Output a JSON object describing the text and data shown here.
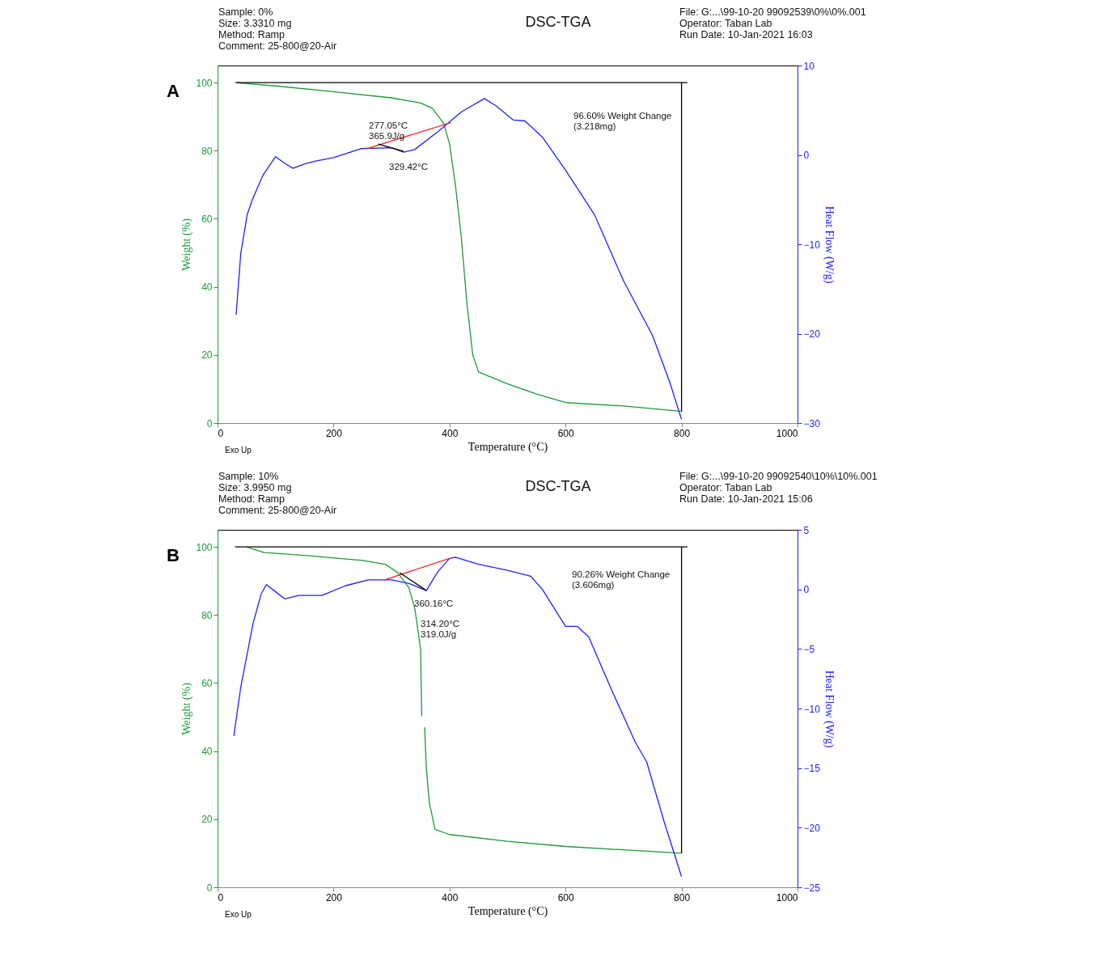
{
  "chart_data": [
    {
      "type": "line",
      "title": "DSC-TGA",
      "xlabel": "Temperature (°C)",
      "ylabel": "Weight (%)",
      "y2label": "Heat Flow (W/g)",
      "xlim": [
        0,
        1000
      ],
      "xticks": [
        0,
        200,
        400,
        600,
        800,
        1000
      ],
      "ylim": [
        0,
        105
      ],
      "yticks": [
        0,
        20,
        40,
        60,
        80,
        100
      ],
      "y2lim": [
        -30,
        10
      ],
      "y2ticks": [
        -30,
        -20,
        -10,
        0,
        10
      ],
      "series": [
        {
          "color": "#1a9a3a",
          "x": [
            30,
            100,
            200,
            300,
            350,
            370,
            390,
            400,
            410,
            420,
            430,
            440,
            450,
            500,
            550,
            600,
            700,
            800
          ],
          "values": [
            100,
            99,
            97.3,
            95.5,
            94,
            92.5,
            88,
            82,
            70,
            55,
            35,
            20,
            15,
            11.5,
            8.5,
            6,
            5,
            3.4
          ]
        },
        {
          "color": "#2020ff",
          "axis": "y2",
          "x": [
            32,
            40,
            51,
            60,
            78,
            100,
            115,
            130,
            150,
            169,
            200,
            247,
            300,
            321,
            340,
            380,
            420,
            460,
            480,
            510,
            530,
            560,
            600,
            650,
            700,
            750,
            780,
            800
          ],
          "values": [
            -17.9,
            -11,
            -6.7,
            -5,
            -2.3,
            -0.2,
            -0.9,
            -1.5,
            -1,
            -0.7,
            -0.3,
            0.7,
            0.8,
            0.3,
            0.6,
            2.6,
            4.8,
            6.3,
            5.5,
            3.9,
            3.8,
            2,
            -1.7,
            -6.7,
            -14.1,
            -20.2,
            -25.5,
            -29.6
          ]
        },
        {
          "color": "#ff2020",
          "axis": "y2",
          "x": [
            257,
            402
          ],
          "values": [
            0.7,
            3.6
          ]
        },
        {
          "color": "#000000",
          "axis": "y2",
          "x": [
            277,
            321
          ],
          "values": [
            1.2,
            0.4
          ]
        },
        {
          "color": "#000000",
          "x": [
            32,
            810
          ],
          "values": [
            100,
            100
          ]
        },
        {
          "color": "#000000",
          "x": [
            800,
            800
          ],
          "values": [
            100,
            3.4
          ]
        }
      ],
      "annotations": [
        "Sample: 0%",
        "Size:  3.3310 mg",
        "Method: Ramp",
        "Comment: 25-800@20-Air",
        "File: G:...\\99-10-20 99092539\\0%\\0%.001",
        "Operator: Taban Lab",
        "Run Date: 10-Jan-2021 16:03",
        "A",
        "Exo Up",
        "277.05°C\n365.9J/g",
        "329.42°C",
        "96.60% Weight Change\n(3.218mg)"
      ]
    },
    {
      "type": "line",
      "title": "DSC-TGA",
      "xlabel": "Temperature (°C)",
      "ylabel": "Weight (%)",
      "y2label": "Heat Flow (W/g)",
      "xlim": [
        0,
        1000
      ],
      "xticks": [
        0,
        200,
        400,
        600,
        800,
        1000
      ],
      "ylim": [
        0,
        105
      ],
      "yticks": [
        0,
        20,
        40,
        60,
        80,
        100
      ],
      "y2lim": [
        -25,
        5
      ],
      "y2ticks": [
        -25,
        -20,
        -15,
        -10,
        -5,
        0,
        5
      ],
      "series": [
        {
          "color": "#1a9a3a",
          "x": [
            50,
            80,
            150,
            250,
            290,
            310,
            330,
            340,
            350,
            352,
            355,
            357,
            360,
            365,
            375,
            400,
            500,
            600,
            700,
            800
          ],
          "values": [
            100,
            98.3,
            97.5,
            96,
            94.8,
            92.5,
            88,
            82,
            70,
            50.3,
            null,
            47,
            35,
            25,
            17,
            15.5,
            13.5,
            12,
            11,
            10
          ]
        },
        {
          "color": "#2020ff",
          "axis": "y2",
          "x": [
            28,
            40,
            61,
            75,
            84,
            100,
            116,
            140,
            180,
            220,
            260,
            300,
            330,
            360,
            380,
            400,
            410,
            450,
            500,
            540,
            560,
            600,
            620,
            640,
            680,
            720,
            740,
            770,
            800
          ],
          "values": [
            -12.3,
            -8.2,
            -2.9,
            -0.4,
            0.4,
            -0.2,
            -0.8,
            -0.5,
            -0.5,
            0.3,
            0.8,
            0.8,
            0.5,
            -0.1,
            1.5,
            2.6,
            2.7,
            2.1,
            1.6,
            1.1,
            0,
            -3.1,
            -3.1,
            -4,
            -8.5,
            -12.8,
            -14.5,
            -19.5,
            -24.1
          ]
        },
        {
          "color": "#ff2020",
          "axis": "y2",
          "x": [
            288,
            400
          ],
          "values": [
            0.8,
            2.6
          ]
        },
        {
          "color": "#000000",
          "axis": "y2",
          "x": [
            314,
            360
          ],
          "values": [
            1.4,
            -0.1
          ]
        },
        {
          "color": "#000000",
          "x": [
            30,
            810
          ],
          "values": [
            100,
            100
          ]
        },
        {
          "color": "#000000",
          "x": [
            800,
            800
          ],
          "values": [
            100,
            10
          ]
        }
      ],
      "annotations": [
        "Sample: 10%",
        "Size:  3.9950 mg",
        "Method: Ramp",
        "Comment: 25-800@20-Air",
        "File: G:...\\99-10-20 99092540\\10%\\10%.001",
        "Operator: Taban Lab",
        "Run Date: 10-Jan-2021 15:06",
        "B",
        "Exo Up",
        "360.16°C",
        "314.20°C\n319.0J/g",
        "90.26% Weight Change\n(3.606mg)"
      ]
    }
  ]
}
